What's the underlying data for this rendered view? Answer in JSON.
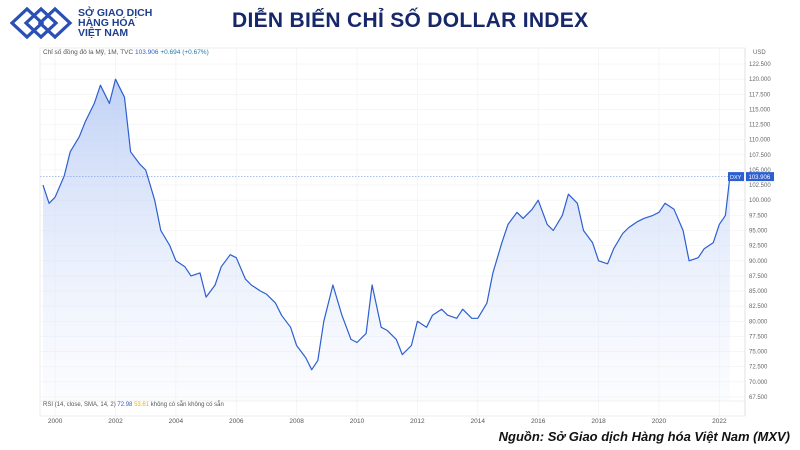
{
  "header": {
    "logo_line1": "SỞ GIAO DỊCH",
    "logo_line2": "HÀNG HÓA",
    "logo_line3": "VIỆT NAM",
    "title": "DIỄN BIẾN CHỈ SỐ DOLLAR INDEX"
  },
  "colors": {
    "accent": "#2d5fd0",
    "title": "#16276a",
    "logo": "#1f3f8f",
    "area": "#dbe6fb"
  },
  "legend": {
    "name": "Chỉ số đồng đô la Mỹ, 1M, TVC",
    "value": "103.906",
    "change": "+0.694 (+0.67%)"
  },
  "rsi": {
    "label": "RSI (14, close, SMA, 14, 2)",
    "value1": "72.98",
    "value2": "53.61",
    "na1": "không có sẵn",
    "na2": "không có sẵn"
  },
  "footer": {
    "source": "Nguồn: Sở Giao dịch Hàng hóa Việt Nam (MXV)"
  },
  "chart_data": {
    "type": "area",
    "currency_label": "USD",
    "price_tag": {
      "symbol": "DXY",
      "value": "103.906"
    },
    "last_value": 103.906,
    "ylim": [
      66.5,
      123.5
    ],
    "y_ticks": [
      67.5,
      70,
      72.5,
      75,
      77.5,
      80,
      82.5,
      85,
      87.5,
      90,
      92.5,
      95,
      97.5,
      100,
      102.5,
      105,
      107.5,
      110,
      112.5,
      115,
      117.5,
      120,
      122.5
    ],
    "y_tick_labels": [
      "67.500",
      "70.000",
      "72.500",
      "75.000",
      "77.500",
      "80.000",
      "82.500",
      "85.000",
      "87.500",
      "90.000",
      "92.500",
      "95.000",
      "97.500",
      "100.000",
      "102.500",
      "105.000",
      "107.500",
      "110.000",
      "112.500",
      "115.000",
      "117.500",
      "120.000",
      "122.500"
    ],
    "xlim": [
      1999.5,
      2022.85
    ],
    "x_ticks": [
      2000,
      2002,
      2004,
      2006,
      2008,
      2010,
      2012,
      2014,
      2016,
      2018,
      2020,
      2022
    ],
    "x_tick_labels": [
      "2000",
      "2002",
      "2004",
      "2006",
      "2008",
      "2010",
      "2012",
      "2014",
      "2016",
      "2018",
      "2020",
      "2022"
    ],
    "grid": true,
    "x": [
      1999.6,
      1999.8,
      2000.0,
      2000.3,
      2000.5,
      2000.8,
      2001.0,
      2001.3,
      2001.5,
      2001.8,
      2002.0,
      2002.3,
      2002.5,
      2002.8,
      2003.0,
      2003.3,
      2003.5,
      2003.8,
      2004.0,
      2004.3,
      2004.5,
      2004.8,
      2005.0,
      2005.3,
      2005.5,
      2005.8,
      2006.0,
      2006.3,
      2006.5,
      2006.8,
      2007.0,
      2007.3,
      2007.5,
      2007.8,
      2008.0,
      2008.3,
      2008.5,
      2008.7,
      2008.9,
      2009.2,
      2009.5,
      2009.8,
      2010.0,
      2010.3,
      2010.5,
      2010.8,
      2011.0,
      2011.3,
      2011.5,
      2011.8,
      2012.0,
      2012.3,
      2012.5,
      2012.8,
      2013.0,
      2013.3,
      2013.5,
      2013.8,
      2014.0,
      2014.3,
      2014.5,
      2014.8,
      2015.0,
      2015.3,
      2015.5,
      2015.8,
      2016.0,
      2016.3,
      2016.5,
      2016.8,
      2017.0,
      2017.3,
      2017.5,
      2017.8,
      2018.0,
      2018.3,
      2018.5,
      2018.8,
      2019.0,
      2019.3,
      2019.5,
      2019.8,
      2020.0,
      2020.2,
      2020.5,
      2020.8,
      2021.0,
      2021.3,
      2021.5,
      2021.8,
      2022.0,
      2022.2,
      2022.35
    ],
    "y": [
      102.5,
      99.5,
      100.5,
      104,
      108,
      110.5,
      113,
      116,
      119,
      116,
      120,
      117,
      108,
      106,
      105,
      100,
      95,
      92.5,
      90,
      89,
      87.5,
      88,
      84,
      86,
      89,
      91,
      90.5,
      87,
      86,
      85,
      84.5,
      83,
      81,
      79,
      76,
      74,
      72,
      73.5,
      80,
      86,
      81,
      77,
      76.5,
      78,
      86,
      79,
      78.5,
      77,
      74.5,
      76,
      80,
      79,
      81,
      82,
      81,
      80.5,
      82,
      80.5,
      80.5,
      83,
      88,
      93,
      96,
      98,
      97,
      98.5,
      100,
      96,
      95,
      97.5,
      101,
      99.5,
      95,
      93,
      90,
      89.5,
      92,
      94.5,
      95.5,
      96.5,
      97,
      97.5,
      98,
      99.5,
      98.5,
      95,
      90,
      90.5,
      92,
      93,
      96,
      97.5,
      103.9
    ]
  }
}
